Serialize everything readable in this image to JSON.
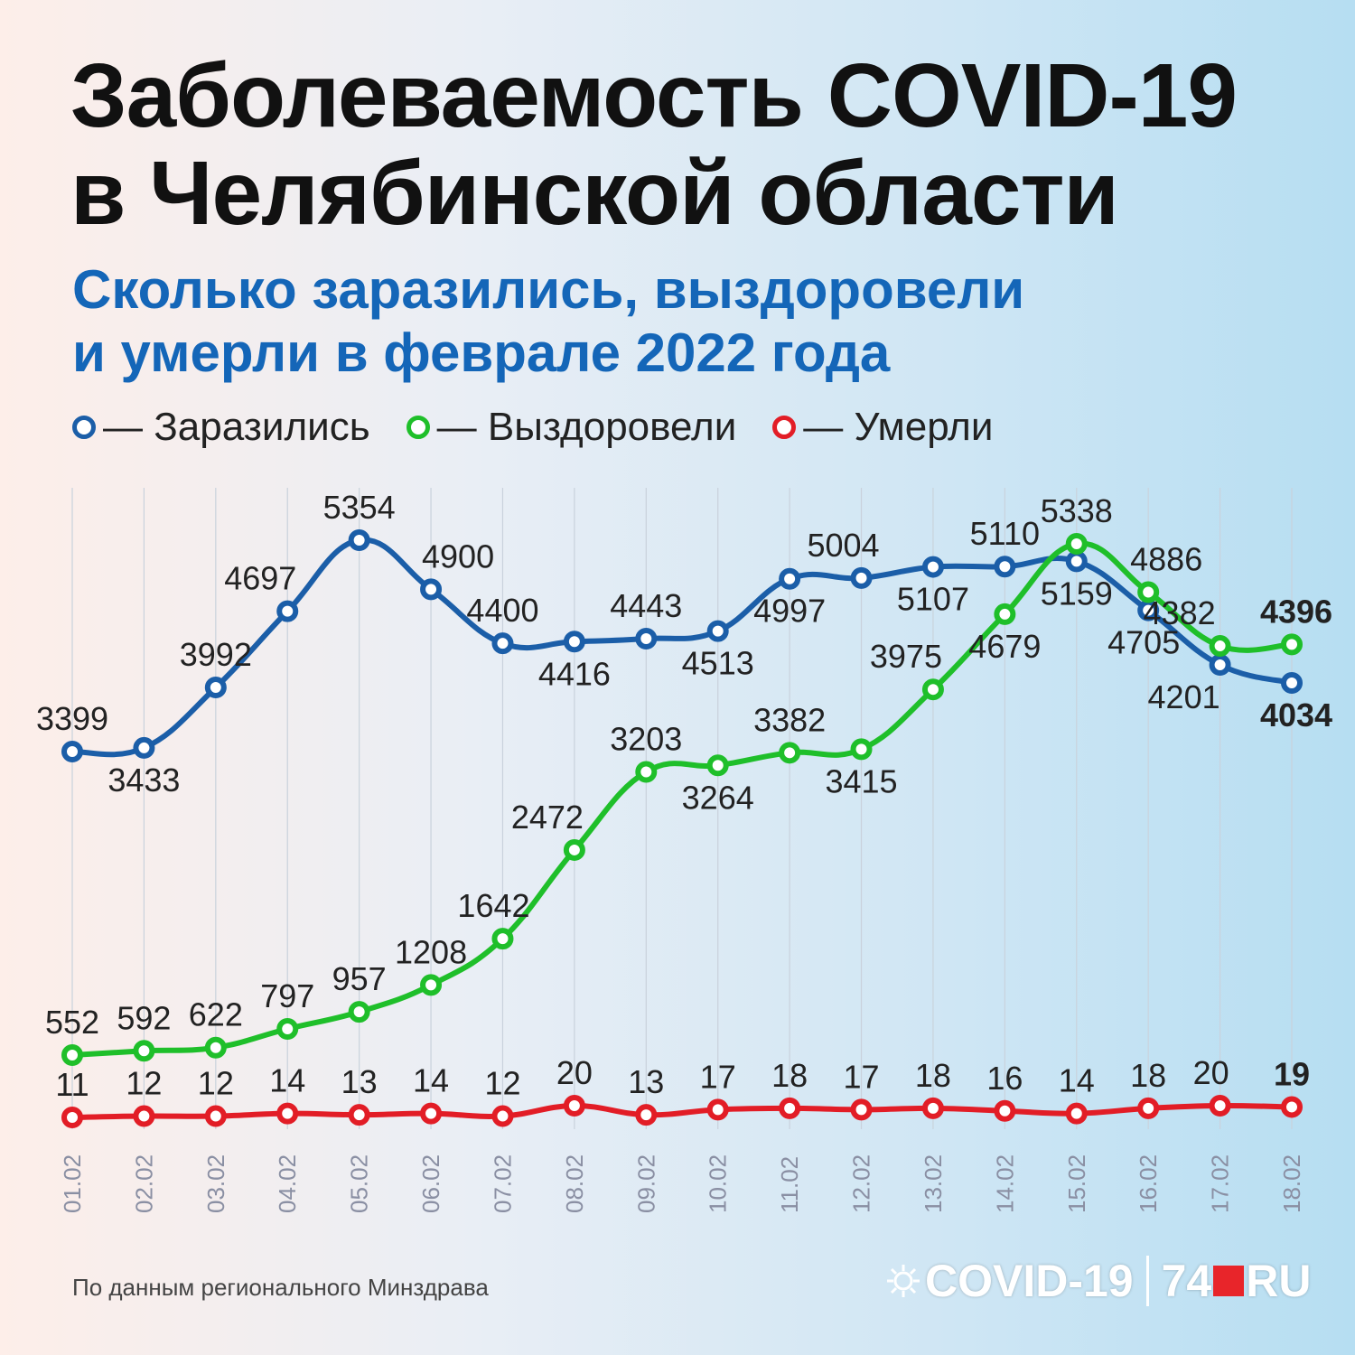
{
  "title": {
    "line1": "Заболеваемость COVID-19",
    "line2": "в Челябинской области"
  },
  "subtitle": {
    "line1": "Сколько заразились, выздоровели",
    "line2": "и умерли в феврале 2022 года"
  },
  "legend": [
    {
      "label": "— Заразились",
      "color": "#1b5ea8"
    },
    {
      "label": "— Выздоровели",
      "color": "#1fbf2a"
    },
    {
      "label": "— Умерли",
      "color": "#e21d26"
    }
  ],
  "footnote": "По данным регионального Минздрава",
  "brand": {
    "virus_icon": "virus-icon",
    "left": "COVID-19",
    "number": "74",
    "suffix": "RU",
    "accent": "#e8252a"
  },
  "chart_data": {
    "type": "line",
    "x": [
      "01.02",
      "02.02",
      "03.02",
      "04.02",
      "05.02",
      "06.02",
      "07.02",
      "08.02",
      "09.02",
      "10.02",
      "11.02",
      "12.02",
      "13.02",
      "14.02",
      "15.02",
      "16.02",
      "17.02",
      "18.02"
    ],
    "series": [
      {
        "name": "Заразились",
        "color": "#1b5ea8",
        "values": [
          3399,
          3433,
          3992,
          4697,
          5354,
          4900,
          4400,
          4416,
          4443,
          4513,
          4997,
          5004,
          5107,
          5110,
          5159,
          4705,
          4201,
          4034
        ]
      },
      {
        "name": "Выздоровели",
        "color": "#1fbf2a",
        "values": [
          552,
          592,
          622,
          797,
          957,
          1208,
          1642,
          2472,
          3203,
          3264,
          3382,
          3415,
          3975,
          4679,
          5338,
          4886,
          4382,
          4396
        ]
      },
      {
        "name": "Умерли",
        "color": "#e21d26",
        "values": [
          11,
          12,
          12,
          14,
          13,
          14,
          12,
          20,
          13,
          17,
          18,
          17,
          18,
          16,
          14,
          18,
          20,
          19
        ]
      }
    ],
    "grid": "vertical",
    "legend": "top-left"
  }
}
